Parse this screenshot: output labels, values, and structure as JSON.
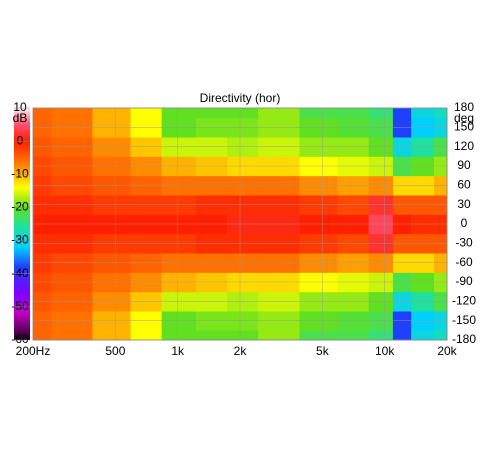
{
  "chart_data": {
    "type": "heatmap",
    "title": "Directivity (hor)",
    "colorbar_label": "dB",
    "y_label": "deg",
    "log_x": true,
    "grid": true,
    "x": [
      200,
      300,
      500,
      700,
      1000,
      1500,
      2000,
      3000,
      5000,
      7000,
      10000,
      12000,
      15000,
      20000
    ],
    "y": [
      -180,
      -150,
      -120,
      -90,
      -60,
      -30,
      0,
      30,
      60,
      90,
      120,
      150,
      180
    ],
    "z": [
      [
        -5,
        -6,
        -10,
        -14,
        -20,
        -20,
        -20,
        -18,
        -22,
        -22,
        -24,
        -38,
        -30,
        -28
      ],
      [
        -5,
        -6,
        -10,
        -14,
        -20,
        -19,
        -19,
        -18,
        -20,
        -21,
        -22,
        -38,
        -32,
        -30
      ],
      [
        -4,
        -5,
        -8,
        -11,
        -16,
        -16,
        -17,
        -16,
        -18,
        -18,
        -20,
        -30,
        -26,
        -22
      ],
      [
        -3,
        -4,
        -6,
        -8,
        -10,
        -11,
        -12,
        -12,
        -14,
        -15,
        -16,
        -22,
        -20,
        -18
      ],
      [
        -2,
        -3,
        -4,
        -5,
        -6,
        -6,
        -6,
        -6,
        -8,
        -9,
        -8,
        -12,
        -12,
        -10
      ],
      [
        -1,
        -1,
        -2,
        -2,
        -2,
        -1,
        -1,
        -1,
        -2,
        -3,
        2,
        -4,
        -4,
        -4
      ],
      [
        0,
        0,
        0,
        0,
        0,
        0,
        1,
        1,
        0,
        0,
        4,
        0,
        -1,
        -1
      ],
      [
        -1,
        -1,
        -2,
        -2,
        -2,
        -1,
        -1,
        -1,
        -2,
        -3,
        2,
        -4,
        -4,
        -4
      ],
      [
        -2,
        -3,
        -4,
        -5,
        -6,
        -6,
        -6,
        -6,
        -8,
        -9,
        -8,
        -12,
        -12,
        -10
      ],
      [
        -3,
        -4,
        -6,
        -8,
        -10,
        -11,
        -12,
        -12,
        -14,
        -15,
        -16,
        -22,
        -20,
        -18
      ],
      [
        -4,
        -5,
        -8,
        -11,
        -16,
        -16,
        -17,
        -16,
        -18,
        -18,
        -20,
        -30,
        -26,
        -22
      ],
      [
        -5,
        -6,
        -10,
        -14,
        -20,
        -19,
        -19,
        -18,
        -20,
        -21,
        -22,
        -38,
        -32,
        -30
      ],
      [
        -5,
        -6,
        -10,
        -14,
        -20,
        -20,
        -20,
        -18,
        -22,
        -22,
        -24,
        -38,
        -30,
        -28
      ]
    ],
    "xlim": [
      200,
      20000
    ],
    "xticks": [
      {
        "value": 200,
        "label": "200Hz"
      },
      500,
      {
        "value": 1000,
        "label": "1k"
      },
      {
        "value": 2000,
        "label": "2k"
      },
      {
        "value": 5000,
        "label": "5k"
      },
      {
        "value": 10000,
        "label": "10k"
      },
      {
        "value": 20000,
        "label": "20k"
      }
    ],
    "ylim": [
      -180,
      180
    ],
    "yticks": [
      -180,
      -150,
      -120,
      -90,
      -60,
      -30,
      0,
      30,
      60,
      90,
      120,
      150,
      180
    ],
    "zlim": [
      -60,
      10
    ],
    "zticks": [
      10,
      0,
      -10,
      -20,
      -30,
      -40,
      -50,
      -60
    ],
    "colormap": [
      {
        "value": 10,
        "color": "#fff0f8"
      },
      {
        "value": 5,
        "color": "#ff5070"
      },
      {
        "value": 0,
        "color": "#ff2000"
      },
      {
        "value": -8,
        "color": "#ff8c00"
      },
      {
        "value": -14,
        "color": "#ffff00"
      },
      {
        "value": -20,
        "color": "#60e020"
      },
      {
        "value": -26,
        "color": "#20e0a0"
      },
      {
        "value": -32,
        "color": "#00d0ff"
      },
      {
        "value": -38,
        "color": "#2040ff"
      },
      {
        "value": -46,
        "color": "#8000ff"
      },
      {
        "value": -52,
        "color": "#c000c0"
      },
      {
        "value": -60,
        "color": "#200020"
      }
    ]
  }
}
